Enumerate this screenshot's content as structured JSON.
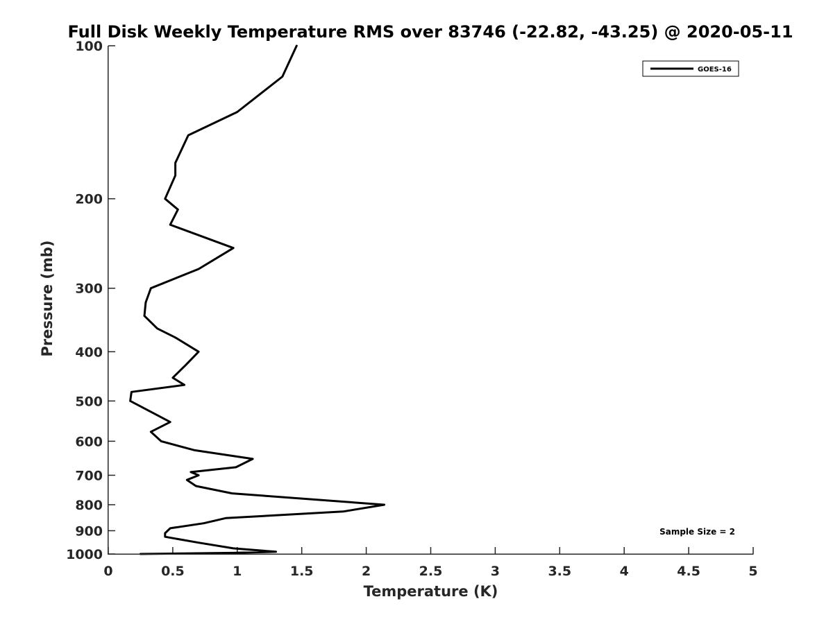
{
  "chart_data": {
    "type": "line",
    "title": "Full Disk Weekly Temperature RMS over 83746 (-22.82, -43.25) @ 2020-05-11",
    "xlabel": "Temperature (K)",
    "ylabel": "Pressure (mb)",
    "xlim": [
      0,
      5
    ],
    "ylim": [
      100,
      1000
    ],
    "y_scale": "log",
    "y_reversed": true,
    "xticks": [
      0,
      0.5,
      1,
      1.5,
      2,
      2.5,
      3,
      3.5,
      4,
      4.5,
      5
    ],
    "xtick_labels": [
      "0",
      "0.5",
      "1",
      "1.5",
      "2",
      "2.5",
      "3",
      "3.5",
      "4",
      "4.5",
      "5"
    ],
    "yticks": [
      100,
      200,
      300,
      400,
      500,
      600,
      700,
      800,
      900,
      1000
    ],
    "ytick_labels": [
      "100",
      "200",
      "300",
      "400",
      "500",
      "600",
      "700",
      "800",
      "900",
      "1000"
    ],
    "grid": false,
    "legend_position": "top-right",
    "series": [
      {
        "name": "GOES-16",
        "color": "#000000",
        "x": [
          1.46,
          1.35,
          1.0,
          0.62,
          0.52,
          0.52,
          0.44,
          0.54,
          0.48,
          0.97,
          0.7,
          0.33,
          0.29,
          0.28,
          0.38,
          0.52,
          0.7,
          0.6,
          0.5,
          0.59,
          0.18,
          0.17,
          0.33,
          0.48,
          0.33,
          0.41,
          0.67,
          1.12,
          0.99,
          0.64,
          0.7,
          0.61,
          0.68,
          0.96,
          2.14,
          1.82,
          0.91,
          0.74,
          0.48,
          0.44,
          0.44,
          0.7,
          0.97,
          1.3,
          0.97,
          0.25
        ],
        "y": [
          100,
          115,
          135,
          150,
          170,
          180,
          200,
          210,
          225,
          250,
          275,
          300,
          320,
          340,
          360,
          375,
          400,
          425,
          450,
          465,
          480,
          500,
          525,
          550,
          575,
          600,
          625,
          650,
          675,
          690,
          700,
          715,
          735,
          760,
          800,
          825,
          850,
          870,
          890,
          910,
          925,
          950,
          975,
          990,
          995,
          1000
        ]
      }
    ],
    "annotations": [
      {
        "text": "Sample Size = 2",
        "position": "bottom-right"
      }
    ]
  }
}
